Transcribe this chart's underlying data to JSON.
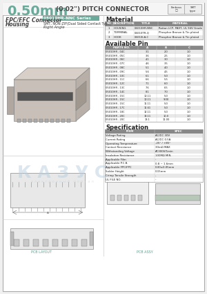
{
  "title_large": "0.50mm",
  "title_small": " (0.02\") PITCH CONNECTOR",
  "title_color": "#6aaa9a",
  "bg_color": "#f0f0f0",
  "page_bg": "#ffffff",
  "border_color": "#aaaaaa",
  "series_label": "05010HR-NNC Series",
  "series_bg": "#6aaa9a",
  "type_line1": "SMT, NON-ZIF(Dual Sided Contact Type)",
  "type_line2": "Right Angle",
  "left_label1": "FPC/FFC Connector",
  "left_label2": "Housing",
  "material_title": "Material",
  "material_headers": [
    "NO",
    "DESCRIPTION",
    "TITLE",
    "MATERIAL"
  ],
  "material_rows": [
    [
      "1",
      "HOUSING",
      "05010HR-NNC",
      "Rattan LCP, PA9T, UL 94V Grade"
    ],
    [
      "2",
      "TERMINAL",
      "05010TR-Q",
      "Phosphor Bronze & Tin plated"
    ],
    [
      "3",
      "HOOK",
      "05010LA-C",
      "Phosphor Bronze & Tin plated"
    ]
  ],
  "avail_title": "Available Pin",
  "avail_headers": [
    "PARTS NO.",
    "A",
    "B",
    "C"
  ],
  "avail_rows": [
    [
      "05010HR - 04C",
      "3.1",
      "2.0",
      "1.0"
    ],
    [
      "05010HR - 05C",
      "3.6",
      "2.5",
      "1.0"
    ],
    [
      "05010HR - 06C",
      "4.1",
      "3.0",
      "1.0"
    ],
    [
      "05010HR - 07C",
      "4.6",
      "3.5",
      "1.0"
    ],
    [
      "05010HR - 08C",
      "5.1",
      "4.0",
      "1.0"
    ],
    [
      "05010HR - 09C",
      "5.6",
      "4.5",
      "1.0"
    ],
    [
      "05010HR - 10C",
      "6.1",
      "5.0",
      "1.0"
    ],
    [
      "05010HR - 11C",
      "6.6",
      "5.5",
      "1.0"
    ],
    [
      "05010HR - 12C",
      "7.1",
      "6.0",
      "1.0"
    ],
    [
      "05010HR - 13C",
      "7.6",
      "6.5",
      "1.0"
    ],
    [
      "05010HR - 14C",
      "8.1",
      "7.0",
      "1.0"
    ],
    [
      "05010HR - 15C",
      "10.11",
      "5.0",
      "1.0"
    ],
    [
      "05010HR - 15C",
      "10.11",
      "9.00",
      "1.0"
    ],
    [
      "05010HR - 15C",
      "11.11",
      "5.0",
      "1.0"
    ],
    [
      "05010HR - 17C",
      "11.61",
      "5.0",
      "1.0"
    ],
    [
      "05010HR - 18C",
      "12.11",
      "5.0",
      "1.0"
    ],
    [
      "05010HR - 20C",
      "13.11",
      "10.0",
      "1.0"
    ],
    [
      "05010HR - 20C",
      "13.1",
      "11.00",
      "1.0"
    ]
  ],
  "spec_title": "Specification",
  "spec_rows": [
    [
      "Voltage Rating",
      "AC/DC 30V"
    ],
    [
      "Current Rating",
      "AC/DC 0.5A"
    ],
    [
      "Operating Temperature",
      "-25° / +85°"
    ],
    [
      "Contact Resistance",
      "30mΩ MAX"
    ],
    [
      "Withstanding Voltage",
      "AC300V/1min"
    ],
    [
      "Insulation Resistance",
      "100MΩ MIN."
    ],
    [
      "Applicable Film",
      "-"
    ],
    [
      "Applicable P.C.B.",
      "0.8 ~ 1.6mm"
    ],
    [
      "Applicable FPC/FPC",
      "0.30±0.05mm"
    ],
    [
      "Solder Height",
      "0.15mm"
    ],
    [
      "Crimp Tensile Strength",
      "-"
    ],
    [
      "UL FILE NO.",
      "-"
    ]
  ],
  "table_header_bg": "#888888",
  "table_header_color": "#ffffff",
  "table_alt_bg": "#e8e8e8",
  "table_line_color": "#cccccc"
}
